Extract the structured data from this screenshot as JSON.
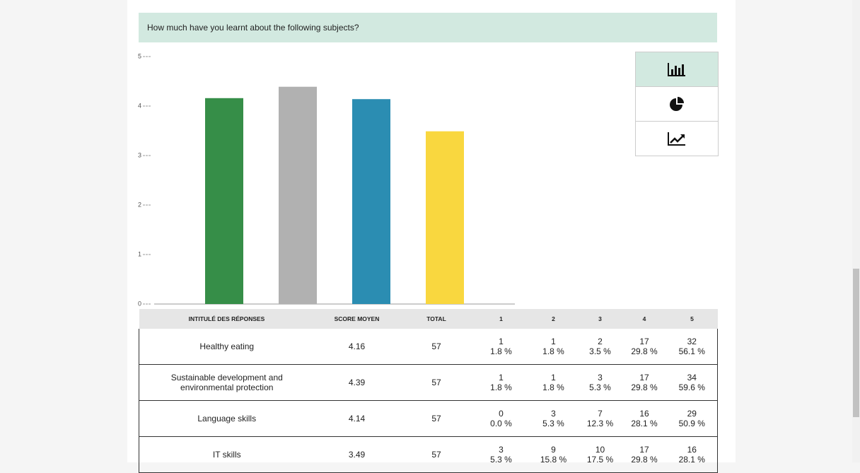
{
  "question": "How much have you learnt about the following subjects?",
  "chart_data": {
    "type": "bar",
    "categories": [
      null,
      null,
      null,
      null
    ],
    "series": [
      {
        "name": null,
        "values": [
          4.16,
          4.39,
          4.14,
          3.49
        ],
        "colors": [
          "#368e48",
          "#b1b1b1",
          "#2b8db2",
          "#f9d73f"
        ]
      }
    ],
    "ylim": [
      0,
      5
    ],
    "yticks": [
      0,
      1,
      2,
      3,
      4,
      5
    ]
  },
  "table": {
    "headers": [
      "INTITULÉ DES RÉPONSES",
      "SCORE MOYEN",
      "TOTAL",
      "1",
      "2",
      "3",
      "4",
      "5"
    ],
    "rows": [
      {
        "label": "Healthy eating",
        "score": "4.16",
        "total": "57",
        "counts": [
          "1",
          "1",
          "2",
          "17",
          "32"
        ],
        "percents": [
          "1.8 %",
          "1.8 %",
          "3.5 %",
          "29.8 %",
          "56.1 %"
        ]
      },
      {
        "label": "Sustainable development and environmental protection",
        "score": "4.39",
        "total": "57",
        "counts": [
          "1",
          "1",
          "3",
          "17",
          "34"
        ],
        "percents": [
          "1.8 %",
          "1.8 %",
          "5.3 %",
          "29.8 %",
          "59.6 %"
        ]
      },
      {
        "label": "Language skills",
        "score": "4.14",
        "total": "57",
        "counts": [
          "0",
          "3",
          "7",
          "16",
          "29"
        ],
        "percents": [
          "0.0 %",
          "5.3 %",
          "12.3 %",
          "28.1 %",
          "50.9 %"
        ]
      },
      {
        "label": "IT skills",
        "score": "3.49",
        "total": "57",
        "counts": [
          "3",
          "9",
          "10",
          "17",
          "16"
        ],
        "percents": [
          "5.3 %",
          "15.8 %",
          "17.5 %",
          "29.8 %",
          "28.1 %"
        ]
      }
    ]
  }
}
